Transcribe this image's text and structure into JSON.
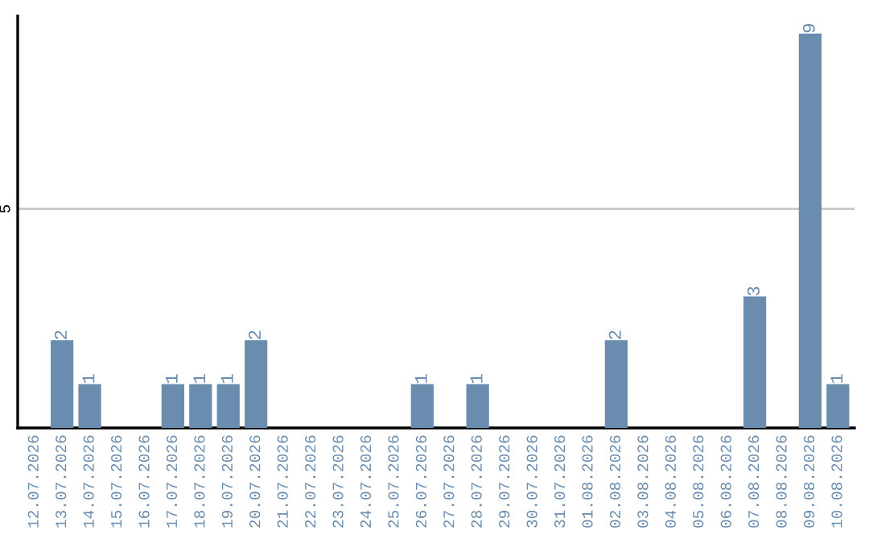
{
  "chart_data": {
    "type": "bar",
    "categories": [
      "12.07.2026",
      "13.07.2026",
      "14.07.2026",
      "15.07.2026",
      "16.07.2026",
      "17.07.2026",
      "18.07.2026",
      "19.07.2026",
      "20.07.2026",
      "21.07.2026",
      "22.07.2026",
      "23.07.2026",
      "24.07.2026",
      "25.07.2026",
      "26.07.2026",
      "27.07.2026",
      "28.07.2026",
      "29.07.2026",
      "30.07.2026",
      "31.07.2026",
      "01.08.2026",
      "02.08.2026",
      "03.08.2026",
      "04.08.2026",
      "05.08.2026",
      "06.08.2026",
      "07.08.2026",
      "08.08.2026",
      "09.08.2026",
      "10.08.2026"
    ],
    "values": [
      0,
      2,
      1,
      0,
      0,
      1,
      1,
      1,
      2,
      0,
      0,
      0,
      0,
      0,
      1,
      0,
      1,
      0,
      0,
      0,
      0,
      2,
      0,
      0,
      0,
      0,
      3,
      0,
      9,
      1
    ],
    "value_labels": [
      null,
      "2",
      "1",
      null,
      null,
      "1",
      "1",
      "1",
      "2",
      null,
      null,
      null,
      null,
      null,
      "1",
      null,
      "1",
      null,
      null,
      null,
      null,
      "2",
      null,
      null,
      null,
      null,
      "3",
      null,
      "9",
      "1"
    ],
    "color": "#6a8caf",
    "ylim": [
      0,
      9.4
    ],
    "yticks": [
      5
    ],
    "grid": "y"
  }
}
